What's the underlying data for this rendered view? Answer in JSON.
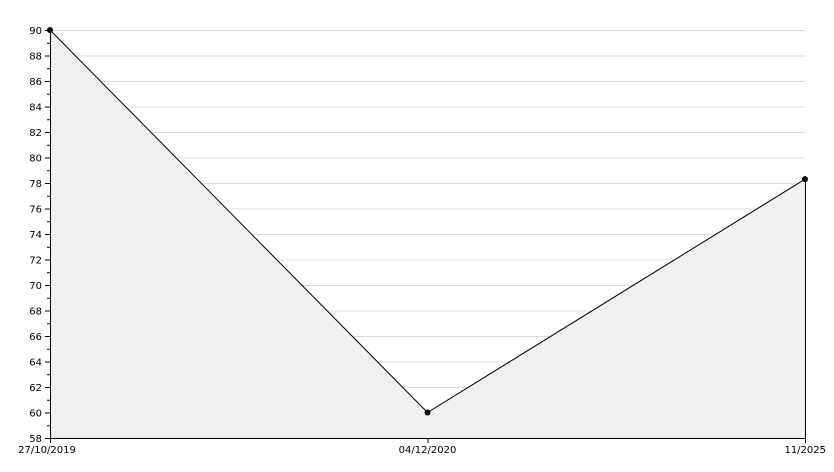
{
  "chart_data": {
    "type": "area",
    "categories": [
      "27/10/2019",
      "04/12/2020",
      "11/2025"
    ],
    "values": [
      90,
      60,
      78.3
    ],
    "title": "",
    "xlabel": "",
    "ylabel": "",
    "ylim": [
      58,
      90
    ],
    "y_major_step": 2,
    "y_minor_step": 1,
    "grid": true,
    "colors": {
      "line": "#000000",
      "fill": "#f0f0f0",
      "grid": "#dcdcdc",
      "marker": "#000000"
    }
  }
}
